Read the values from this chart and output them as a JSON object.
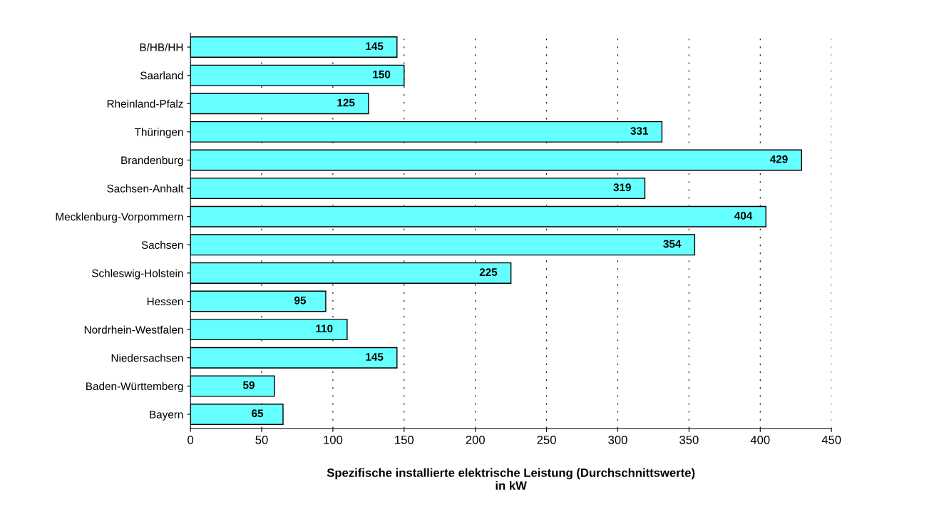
{
  "chart_data": {
    "type": "bar",
    "orientation": "horizontal",
    "xlabel": "Spezifische installierte elektrische Leistung (Durchschnittswerte)\nin kW",
    "categories": [
      "B/HB/HH",
      "Saarland",
      "Rheinland-Pfalz",
      "Thüringen",
      "Brandenburg",
      "Sachsen-Anhalt",
      "Mecklenburg-Vorpommern",
      "Sachsen",
      "Schleswig-Holstein",
      "Hessen",
      "Nordrhein-Westfalen",
      "Niedersachsen",
      "Baden-Württemberg",
      "Bayern"
    ],
    "values": [
      145,
      150,
      125,
      331,
      429,
      319,
      404,
      354,
      225,
      95,
      110,
      145,
      59,
      65
    ],
    "color": "#66ffff",
    "xlim": [
      0,
      450
    ],
    "xticks": [
      0,
      50,
      100,
      150,
      200,
      250,
      300,
      350,
      400,
      450
    ],
    "grid": "x",
    "line_style": "dotted",
    "data_labels": true
  }
}
